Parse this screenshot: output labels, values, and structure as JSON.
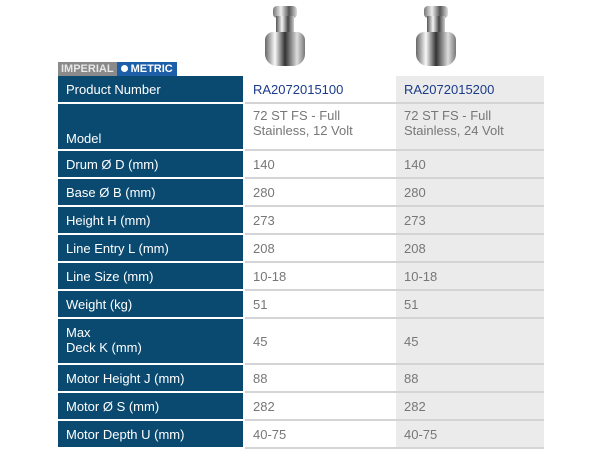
{
  "unit_toggle": {
    "imperial": "IMPERIAL",
    "metric": "METRIC",
    "selected": "METRIC"
  },
  "colors": {
    "label_bg": "#0b4a70",
    "metric_active": "#1c5fa8",
    "product_number": "#1a3a8a"
  },
  "products": [
    {
      "image": "winch-image"
    },
    {
      "image": "winch-image"
    }
  ],
  "rows": [
    {
      "label": "Product Number",
      "v1": "RA2072015100",
      "v2": "RA2072015200"
    },
    {
      "label": "Model",
      "v1": "72 ST FS - Full Stainless, 12 Volt",
      "v2": "72 ST FS - Full Stainless, 24 Volt"
    },
    {
      "label": "Drum Ø D  (mm)",
      "v1": "140",
      "v2": "140"
    },
    {
      "label": "Base Ø B  (mm)",
      "v1": "280",
      "v2": "280"
    },
    {
      "label": "Height H  (mm)",
      "v1": "273",
      "v2": "273"
    },
    {
      "label": "Line Entry L  (mm)",
      "v1": "208",
      "v2": "208"
    },
    {
      "label": "Line Size  (mm)",
      "v1": "10-18",
      "v2": "10-18"
    },
    {
      "label": "Weight  (kg)",
      "v1": "51",
      "v2": "51"
    },
    {
      "label": "Max Deck K  (mm)",
      "label_line1": "Max",
      "label_line2": "Deck K  (mm)",
      "v1": "45",
      "v2": "45"
    },
    {
      "label": "Motor Height J  (mm)",
      "v1": "88",
      "v2": "88"
    },
    {
      "label": "Motor Ø S  (mm)",
      "v1": "282",
      "v2": "282"
    },
    {
      "label": "Motor Depth U  (mm)",
      "v1": "40-75",
      "v2": "40-75"
    }
  ]
}
